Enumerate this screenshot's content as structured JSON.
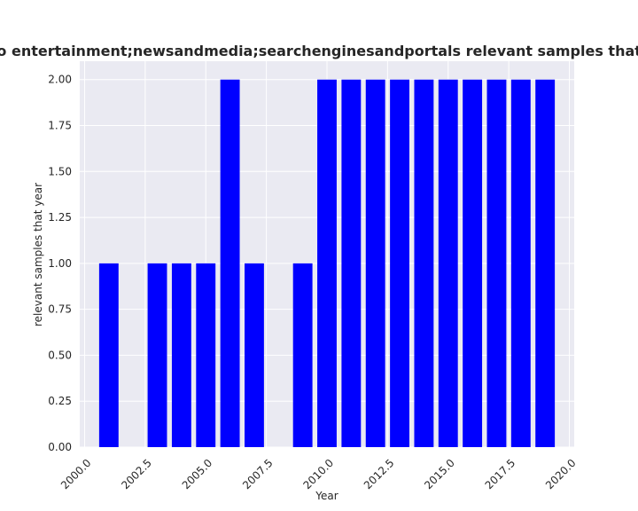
{
  "chart_data": {
    "type": "bar",
    "title": "elated to entertainment;newsandmedia;searchenginesandportals relevant samples that year in",
    "xlabel": "Year",
    "ylabel": "relevant samples that year",
    "x": [
      2001,
      2003,
      2004,
      2005,
      2006,
      2007,
      2009,
      2010,
      2011,
      2012,
      2013,
      2014,
      2015,
      2016,
      2017,
      2018,
      2019
    ],
    "values": [
      1,
      1,
      1,
      1,
      2,
      1,
      1,
      2,
      2,
      2,
      2,
      2,
      2,
      2,
      2,
      2,
      2
    ],
    "xlim": [
      1999.8,
      2020.2
    ],
    "ylim": [
      0,
      2.1
    ],
    "xticks": [
      2000.0,
      2002.5,
      2005.0,
      2007.5,
      2010.0,
      2012.5,
      2015.0,
      2017.5,
      2020.0
    ],
    "xtick_labels": [
      "2000.0",
      "2002.5",
      "2005.0",
      "2007.5",
      "2010.0",
      "2012.5",
      "2015.0",
      "2017.5",
      "2020.0"
    ],
    "yticks": [
      0,
      0.25,
      0.5,
      0.75,
      1.0,
      1.25,
      1.5,
      1.75,
      2.0
    ],
    "ytick_labels": [
      "0.00",
      "0.25",
      "0.50",
      "0.75",
      "1.00",
      "1.25",
      "1.50",
      "1.75",
      "2.00"
    ],
    "bar_color": "#0000ff",
    "plot_background": "#eaeaf2",
    "grid_color": "#ffffff",
    "grid": true,
    "legend": "none"
  }
}
